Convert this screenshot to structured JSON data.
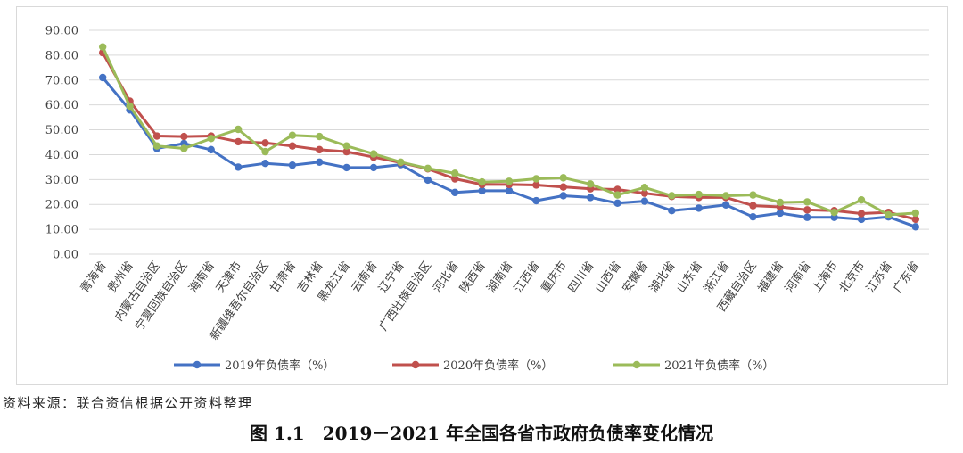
{
  "chart_data": {
    "type": "line",
    "categories": [
      "青海省",
      "贵州省",
      "内蒙古自治区",
      "宁夏回族自治区",
      "海南省",
      "天津市",
      "新疆维吾尔自治区",
      "甘肃省",
      "吉林省",
      "黑龙江省",
      "云南省",
      "辽宁省",
      "广西壮族自治区",
      "河北省",
      "陕西省",
      "湖南省",
      "江西省",
      "重庆市",
      "四川省",
      "山西省",
      "安徽省",
      "湖北省",
      "山东省",
      "浙江省",
      "西藏自治区",
      "福建省",
      "河南省",
      "上海市",
      "北京市",
      "江苏省",
      "广东省"
    ],
    "series": [
      {
        "name": "2019年负债率（%）",
        "color": "#4472c4",
        "values": [
          71.0,
          58.0,
          42.5,
          44.5,
          42.0,
          35.0,
          36.5,
          35.8,
          37.0,
          34.8,
          34.8,
          36.0,
          29.8,
          24.8,
          25.5,
          25.5,
          21.5,
          23.5,
          22.8,
          20.5,
          21.3,
          17.5,
          18.5,
          19.8,
          15.0,
          16.5,
          14.8,
          14.8,
          14.0,
          15.0,
          11.0
        ]
      },
      {
        "name": "2020年负债率（%）",
        "color": "#c0504d",
        "values": [
          81.0,
          61.5,
          47.5,
          47.3,
          47.5,
          45.2,
          44.7,
          43.5,
          42.0,
          41.2,
          39.0,
          36.8,
          34.3,
          30.3,
          28.0,
          28.0,
          27.8,
          27.0,
          26.3,
          26.0,
          24.5,
          23.2,
          22.8,
          22.8,
          19.5,
          19.0,
          17.8,
          17.5,
          16.3,
          16.8,
          14.0
        ]
      },
      {
        "name": "2021年负债率（%）",
        "color": "#9bbb59",
        "values": [
          83.3,
          59.5,
          43.5,
          42.5,
          46.5,
          50.2,
          41.2,
          47.8,
          47.3,
          43.5,
          40.3,
          37.0,
          34.5,
          32.5,
          29.0,
          29.3,
          30.3,
          30.7,
          28.2,
          23.8,
          26.8,
          23.5,
          24.0,
          23.5,
          23.8,
          20.8,
          21.0,
          16.8,
          21.8,
          15.8,
          16.5
        ]
      }
    ],
    "y_ticks": [
      "0.00",
      "10.00",
      "20.00",
      "30.00",
      "40.00",
      "50.00",
      "60.00",
      "70.00",
      "80.00",
      "90.00"
    ],
    "ylim": [
      0,
      90
    ],
    "grid": true,
    "legend_position": "bottom"
  },
  "source_note": "资料来源：联合资信根据公开资料整理",
  "figure_caption": "图 1.1　2019－2021 年全国各省市政府负债率变化情况"
}
